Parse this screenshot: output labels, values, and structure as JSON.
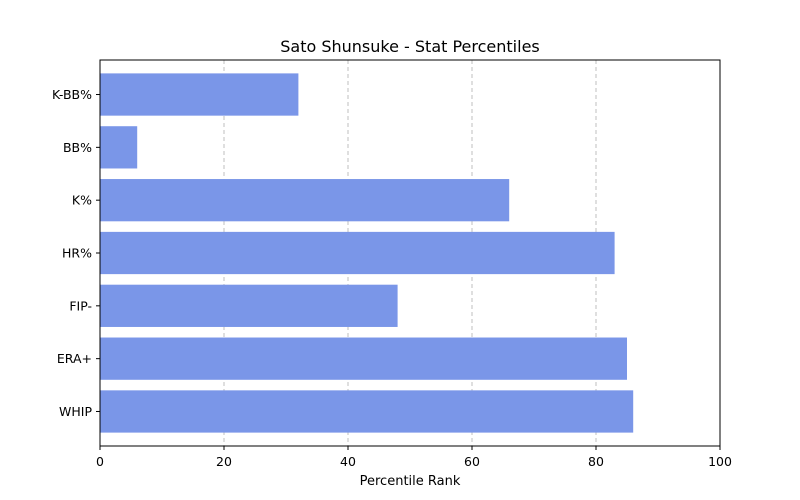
{
  "chart_data": {
    "type": "bar",
    "orientation": "horizontal",
    "title": "Sato Shunsuke - Stat Percentiles",
    "xlabel": "Percentile Rank",
    "ylabel": "",
    "categories": [
      "WHIP",
      "ERA+",
      "FIP-",
      "HR%",
      "K%",
      "BB%",
      "K-BB%"
    ],
    "values": [
      86,
      85,
      48,
      83,
      66,
      6,
      32
    ],
    "xlim": [
      0,
      100
    ],
    "xticks": [
      0,
      20,
      40,
      60,
      80,
      100
    ],
    "grid": "x-dashed",
    "bar_color": "#7a96e8"
  }
}
